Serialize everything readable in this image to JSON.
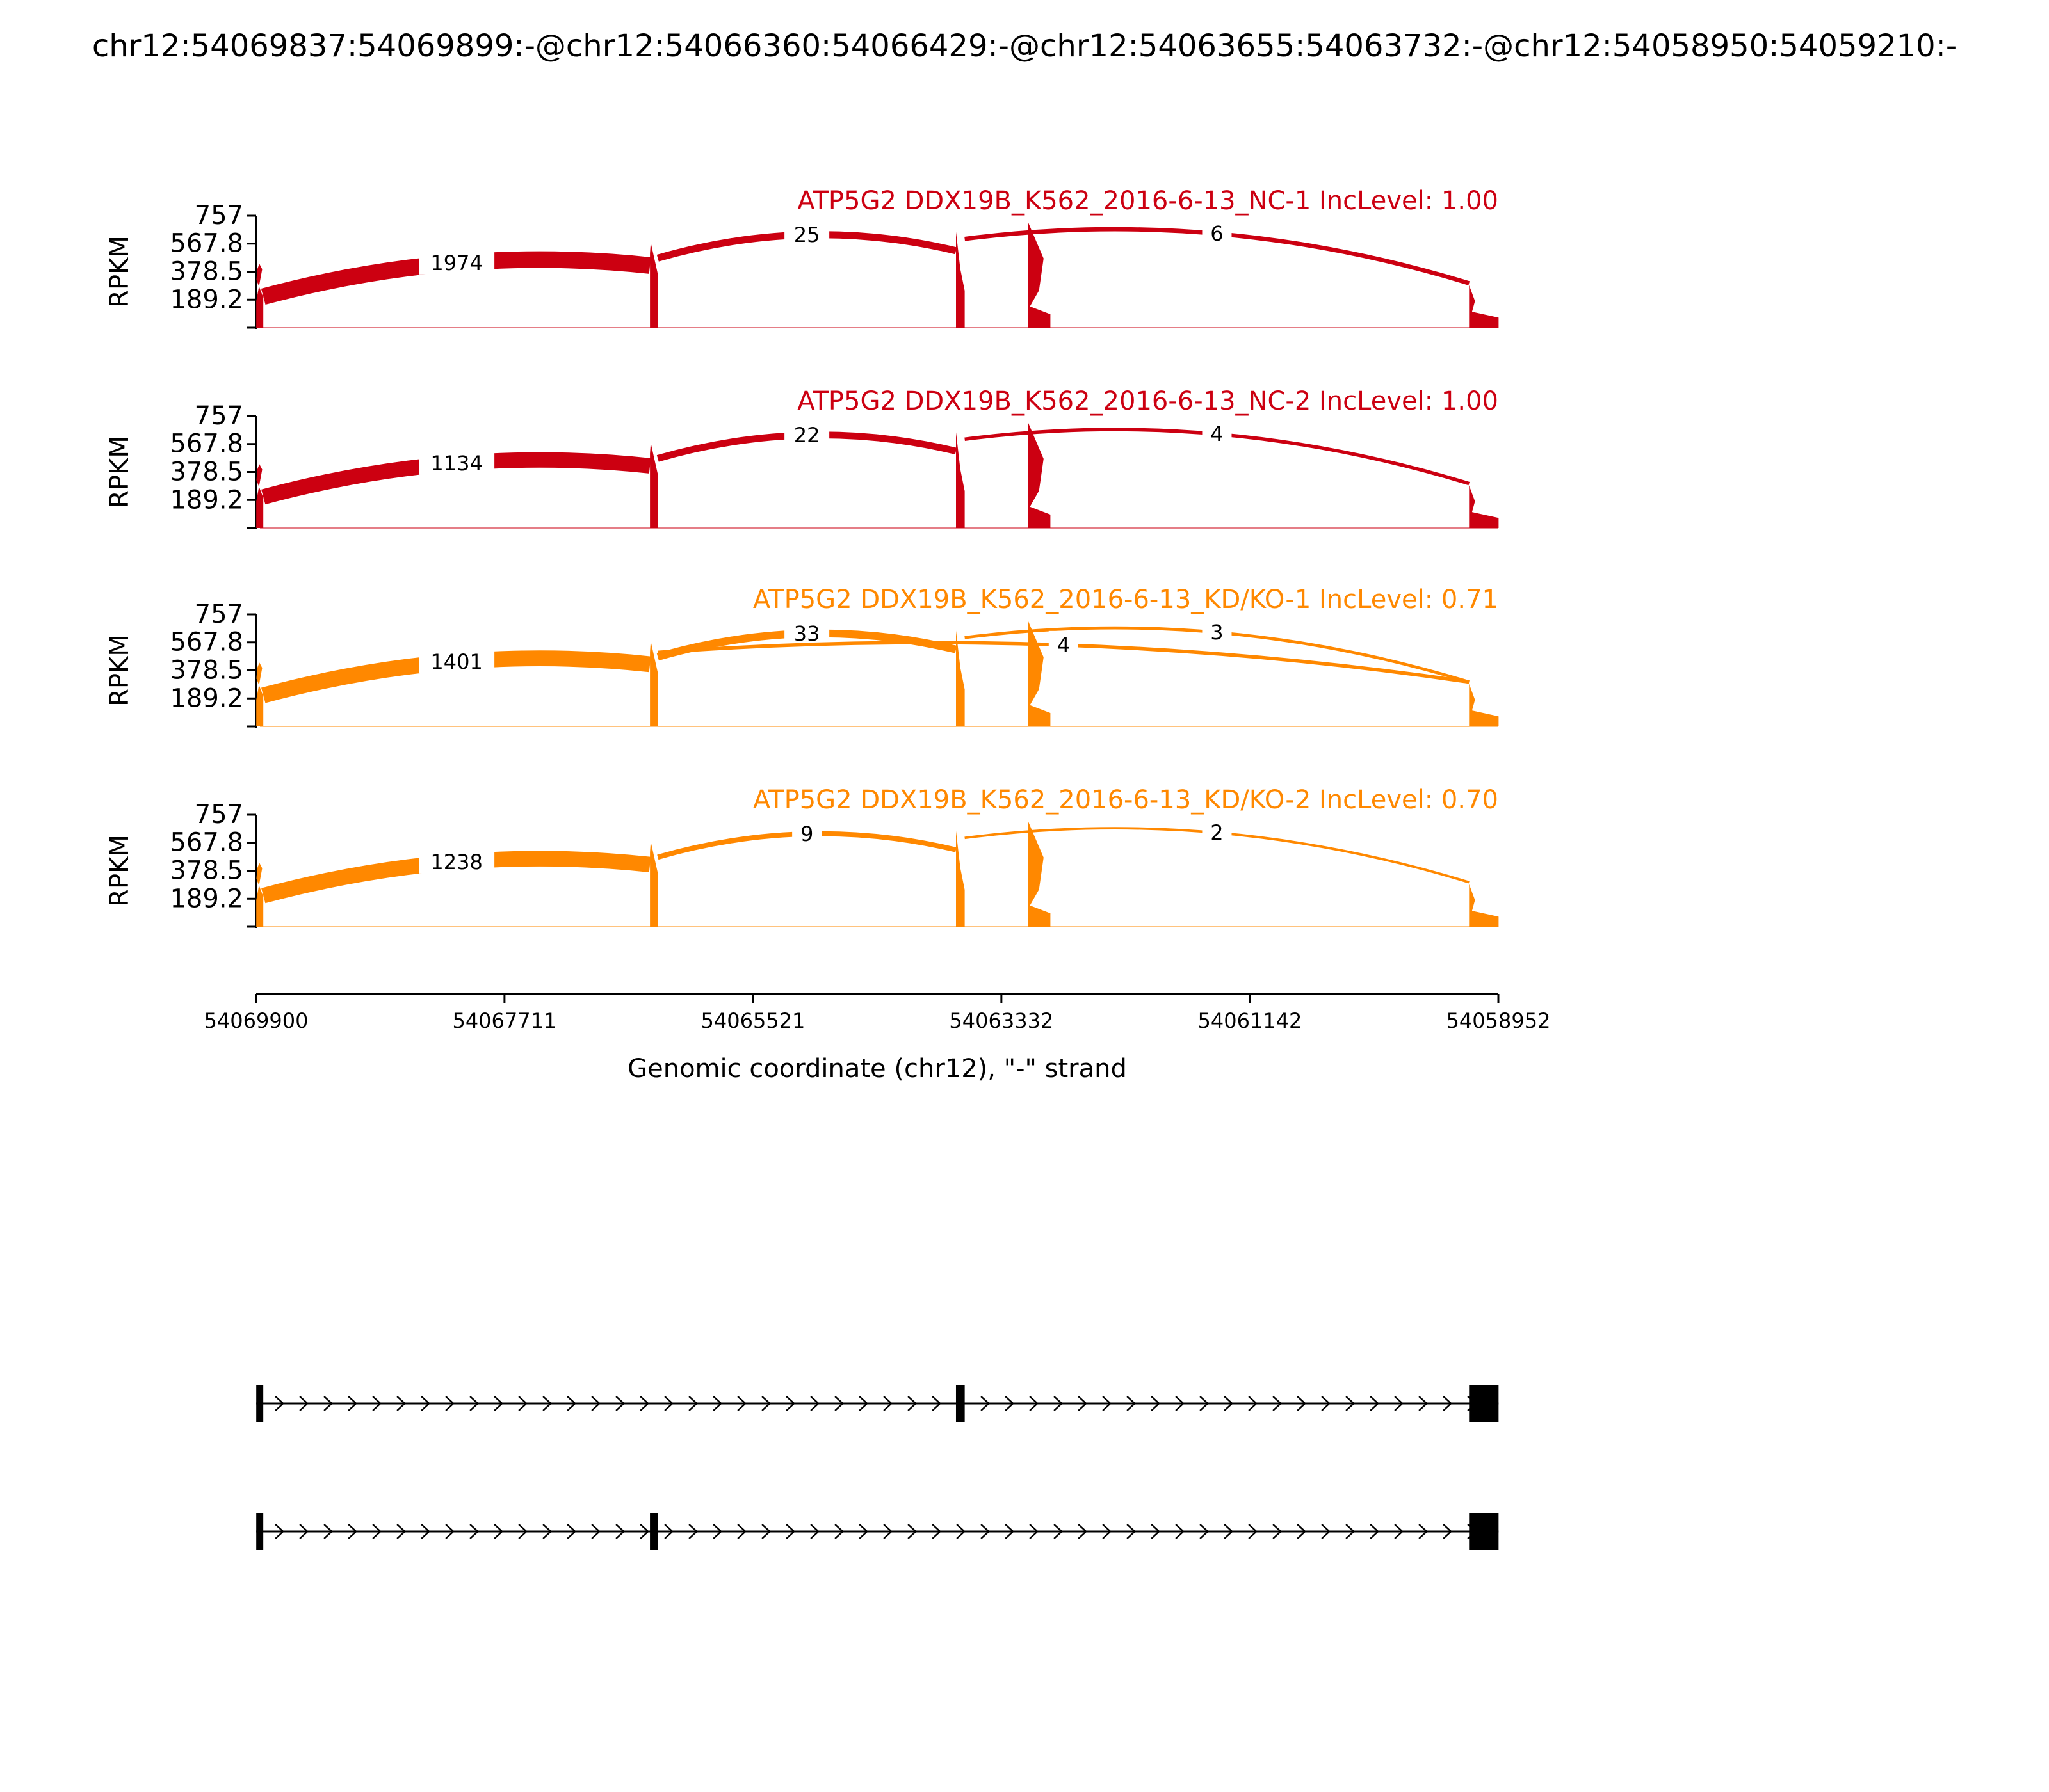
{
  "figure": {
    "title": "chr12:54069837:54069899:-@chr12:54066360:54066429:-@chr12:54063655:54063732:-@chr12:54058950:54059210:-"
  },
  "chart_data": {
    "type": "area",
    "ylabel": "RPKM",
    "yticks": [
      "757",
      "567.8",
      "378.5",
      "189.2"
    ],
    "ytick_values": [
      757,
      567.8,
      378.5,
      189.2
    ],
    "ylim": [
      0,
      757
    ],
    "xlabel": "Genomic coordinate (chr12), \"-\" strand",
    "xticks": [
      "54069900",
      "54067711",
      "54065521",
      "54063332",
      "54061142",
      "54058952"
    ],
    "xtick_values": [
      54069900,
      54067711,
      54065521,
      54063332,
      54061142,
      54058952
    ],
    "xlim": [
      54069900,
      54058952
    ],
    "exons": [
      {
        "start": 54069899,
        "end": 54069837
      },
      {
        "start": 54066429,
        "end": 54066360
      },
      {
        "start": 54063732,
        "end": 54063655
      },
      {
        "start": 54063100,
        "end": 54062900
      },
      {
        "start": 54059210,
        "end": 54058950
      }
    ],
    "panels": [
      {
        "title": "ATP5G2 DDX19B_K562_2016-6-13_NC-1 IncLevel: 1.00",
        "color": "#cc0011",
        "junctions": [
          {
            "from": 54069837,
            "to": 54066429,
            "count": "1974",
            "count_value": 1974
          },
          {
            "from": 54066360,
            "to": 54063732,
            "count": "25",
            "count_value": 25
          },
          {
            "from": 54063655,
            "to": 54059210,
            "count": "6",
            "count_value": 6
          }
        ]
      },
      {
        "title": "ATP5G2 DDX19B_K562_2016-6-13_NC-2 IncLevel: 1.00",
        "color": "#cc0011",
        "junctions": [
          {
            "from": 54069837,
            "to": 54066429,
            "count": "1134",
            "count_value": 1134
          },
          {
            "from": 54066360,
            "to": 54063732,
            "count": "22",
            "count_value": 22
          },
          {
            "from": 54063655,
            "to": 54059210,
            "count": "4",
            "count_value": 4
          }
        ]
      },
      {
        "title": "ATP5G2 DDX19B_K562_2016-6-13_KD/KO-1 IncLevel: 0.71",
        "color": "#ff8800",
        "junctions": [
          {
            "from": 54069837,
            "to": 54066429,
            "count": "1401",
            "count_value": 1401
          },
          {
            "from": 54066360,
            "to": 54063732,
            "count": "33",
            "count_value": 33
          },
          {
            "from": 54063655,
            "to": 54059210,
            "count": "3",
            "count_value": 3
          },
          {
            "from": 54066360,
            "to": 54059210,
            "count": "4",
            "count_value": 4
          }
        ]
      },
      {
        "title": "ATP5G2 DDX19B_K562_2016-6-13_KD/KO-2 IncLevel: 0.70",
        "color": "#ff8800",
        "junctions": [
          {
            "from": 54069837,
            "to": 54066429,
            "count": "1238",
            "count_value": 1238
          },
          {
            "from": 54066360,
            "to": 54063732,
            "count": "9",
            "count_value": 9
          },
          {
            "from": 54063655,
            "to": 54059210,
            "count": "2",
            "count_value": 2
          }
        ]
      }
    ],
    "isoforms": [
      {
        "exons": [
          [
            54069899,
            54069837
          ],
          [
            54063732,
            54063655
          ],
          [
            54059210,
            54058950
          ]
        ]
      },
      {
        "exons": [
          [
            54069899,
            54069837
          ],
          [
            54066429,
            54066360
          ],
          [
            54059210,
            54058950
          ]
        ]
      }
    ]
  }
}
